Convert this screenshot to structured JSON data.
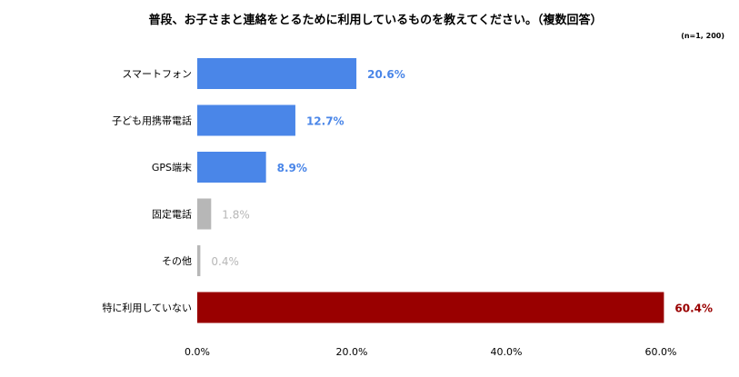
{
  "chart_data": {
    "type": "bar",
    "orientation": "horizontal",
    "title": "普段、お子さまと連絡をとるために利用しているものを教えてください。（複数回答）",
    "note": "(n=1, 200)",
    "categories": [
      "スマートフォン",
      "子ども用携帯電話",
      "GPS端末",
      "固定電話",
      "その他",
      "特に利用していない"
    ],
    "values": [
      20.6,
      12.7,
      8.9,
      1.8,
      0.4,
      60.4
    ],
    "data_labels": [
      "20.6%",
      "12.7%",
      "8.9%",
      "1.8%",
      "0.4%",
      "60.4%"
    ],
    "bar_colors": [
      "#4a86e8",
      "#4a86e8",
      "#4a86e8",
      "#b7b7b7",
      "#b7b7b7",
      "#990000"
    ],
    "label_colors": [
      "#4a86e8",
      "#4a86e8",
      "#4a86e8",
      "#b7b7b7",
      "#b7b7b7",
      "#990000"
    ],
    "label_bold": [
      true,
      true,
      true,
      false,
      false,
      true
    ],
    "xlim": [
      0,
      60
    ],
    "xticks": [
      "0.0%",
      "20.0%",
      "40.0%",
      "60.0%"
    ],
    "xlabel": "",
    "ylabel": "",
    "grid": false,
    "legend": "none"
  }
}
